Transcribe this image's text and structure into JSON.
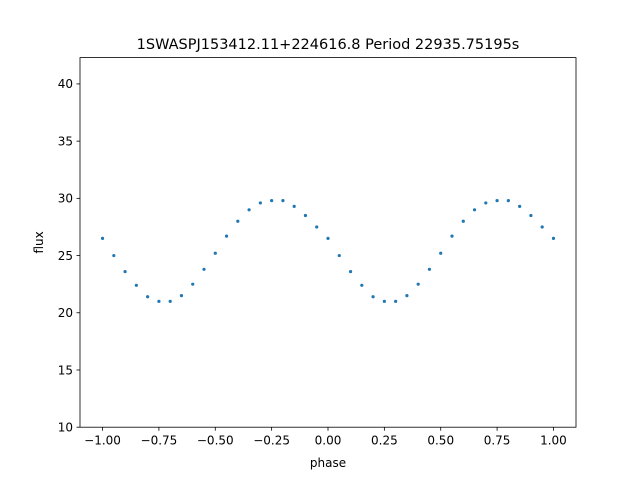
{
  "chart_data": {
    "type": "scatter",
    "title": "1SWASPJ153412.11+224616.8 Period 22935.75195s",
    "xlabel": "phase",
    "ylabel": "flux",
    "xlim": [
      -1.1,
      1.1
    ],
    "ylim": [
      10,
      42.3
    ],
    "xticks": [
      -1.0,
      -0.75,
      -0.5,
      -0.25,
      0.0,
      0.25,
      0.5,
      0.75,
      1.0
    ],
    "xtick_labels": [
      "−1.00",
      "−0.75",
      "−0.50",
      "−0.25",
      "0.00",
      "0.25",
      "0.50",
      "0.75",
      "1.00"
    ],
    "yticks": [
      10,
      15,
      20,
      25,
      30,
      35,
      40
    ],
    "ytick_labels": [
      "10",
      "15",
      "20",
      "25",
      "30",
      "35",
      "40"
    ],
    "grid": false,
    "point_color": "#1f77b4",
    "series": [
      {
        "x": [
          -1.0,
          -0.95,
          -0.9,
          -0.85,
          -0.8,
          -0.75,
          -0.7,
          -0.65,
          -0.6,
          -0.55,
          -0.5,
          -0.45,
          -0.4,
          -0.35,
          -0.3,
          -0.25,
          -0.2,
          -0.15,
          -0.1,
          -0.05,
          0.0,
          0.05,
          0.1,
          0.15,
          0.2,
          0.25,
          0.3,
          0.35,
          0.4,
          0.45,
          0.5,
          0.55,
          0.6,
          0.65,
          0.7,
          0.75,
          0.8,
          0.85,
          0.9,
          0.95,
          1.0
        ],
        "y": [
          26.5,
          25.0,
          23.6,
          22.4,
          21.4,
          21.0,
          21.0,
          21.5,
          22.5,
          23.8,
          25.2,
          26.7,
          28.0,
          29.0,
          29.6,
          29.8,
          29.8,
          29.3,
          28.5,
          27.5,
          26.5,
          25.0,
          23.6,
          22.4,
          21.4,
          21.0,
          21.0,
          21.5,
          22.5,
          23.8,
          25.2,
          26.7,
          28.0,
          29.0,
          29.6,
          29.8,
          29.8,
          29.3,
          28.5,
          27.5,
          26.5
        ]
      }
    ]
  }
}
